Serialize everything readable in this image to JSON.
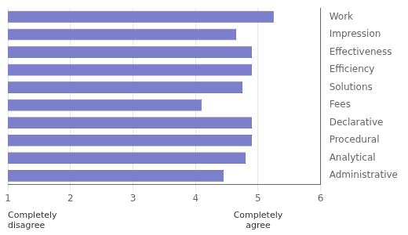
{
  "chart_data": {
    "type": "bar",
    "orientation": "horizontal",
    "categories": [
      "Work",
      "Impression",
      "Effectiveness",
      "Efficiency",
      "Solutions",
      "Fees",
      "Declarative",
      "Procedural",
      "Analytical",
      "Administrative"
    ],
    "values": [
      5.25,
      4.65,
      4.9,
      4.9,
      4.75,
      4.1,
      4.9,
      4.9,
      4.8,
      4.45
    ],
    "color": "#7b7fcc",
    "xlim": [
      1,
      6
    ],
    "xticks": [
      1,
      2,
      3,
      4,
      5,
      6
    ],
    "grid": true,
    "annotations": [
      {
        "text": "Completely\ndisagree",
        "x": 1
      },
      {
        "text": "Completely\nagree",
        "x": 5
      }
    ]
  }
}
